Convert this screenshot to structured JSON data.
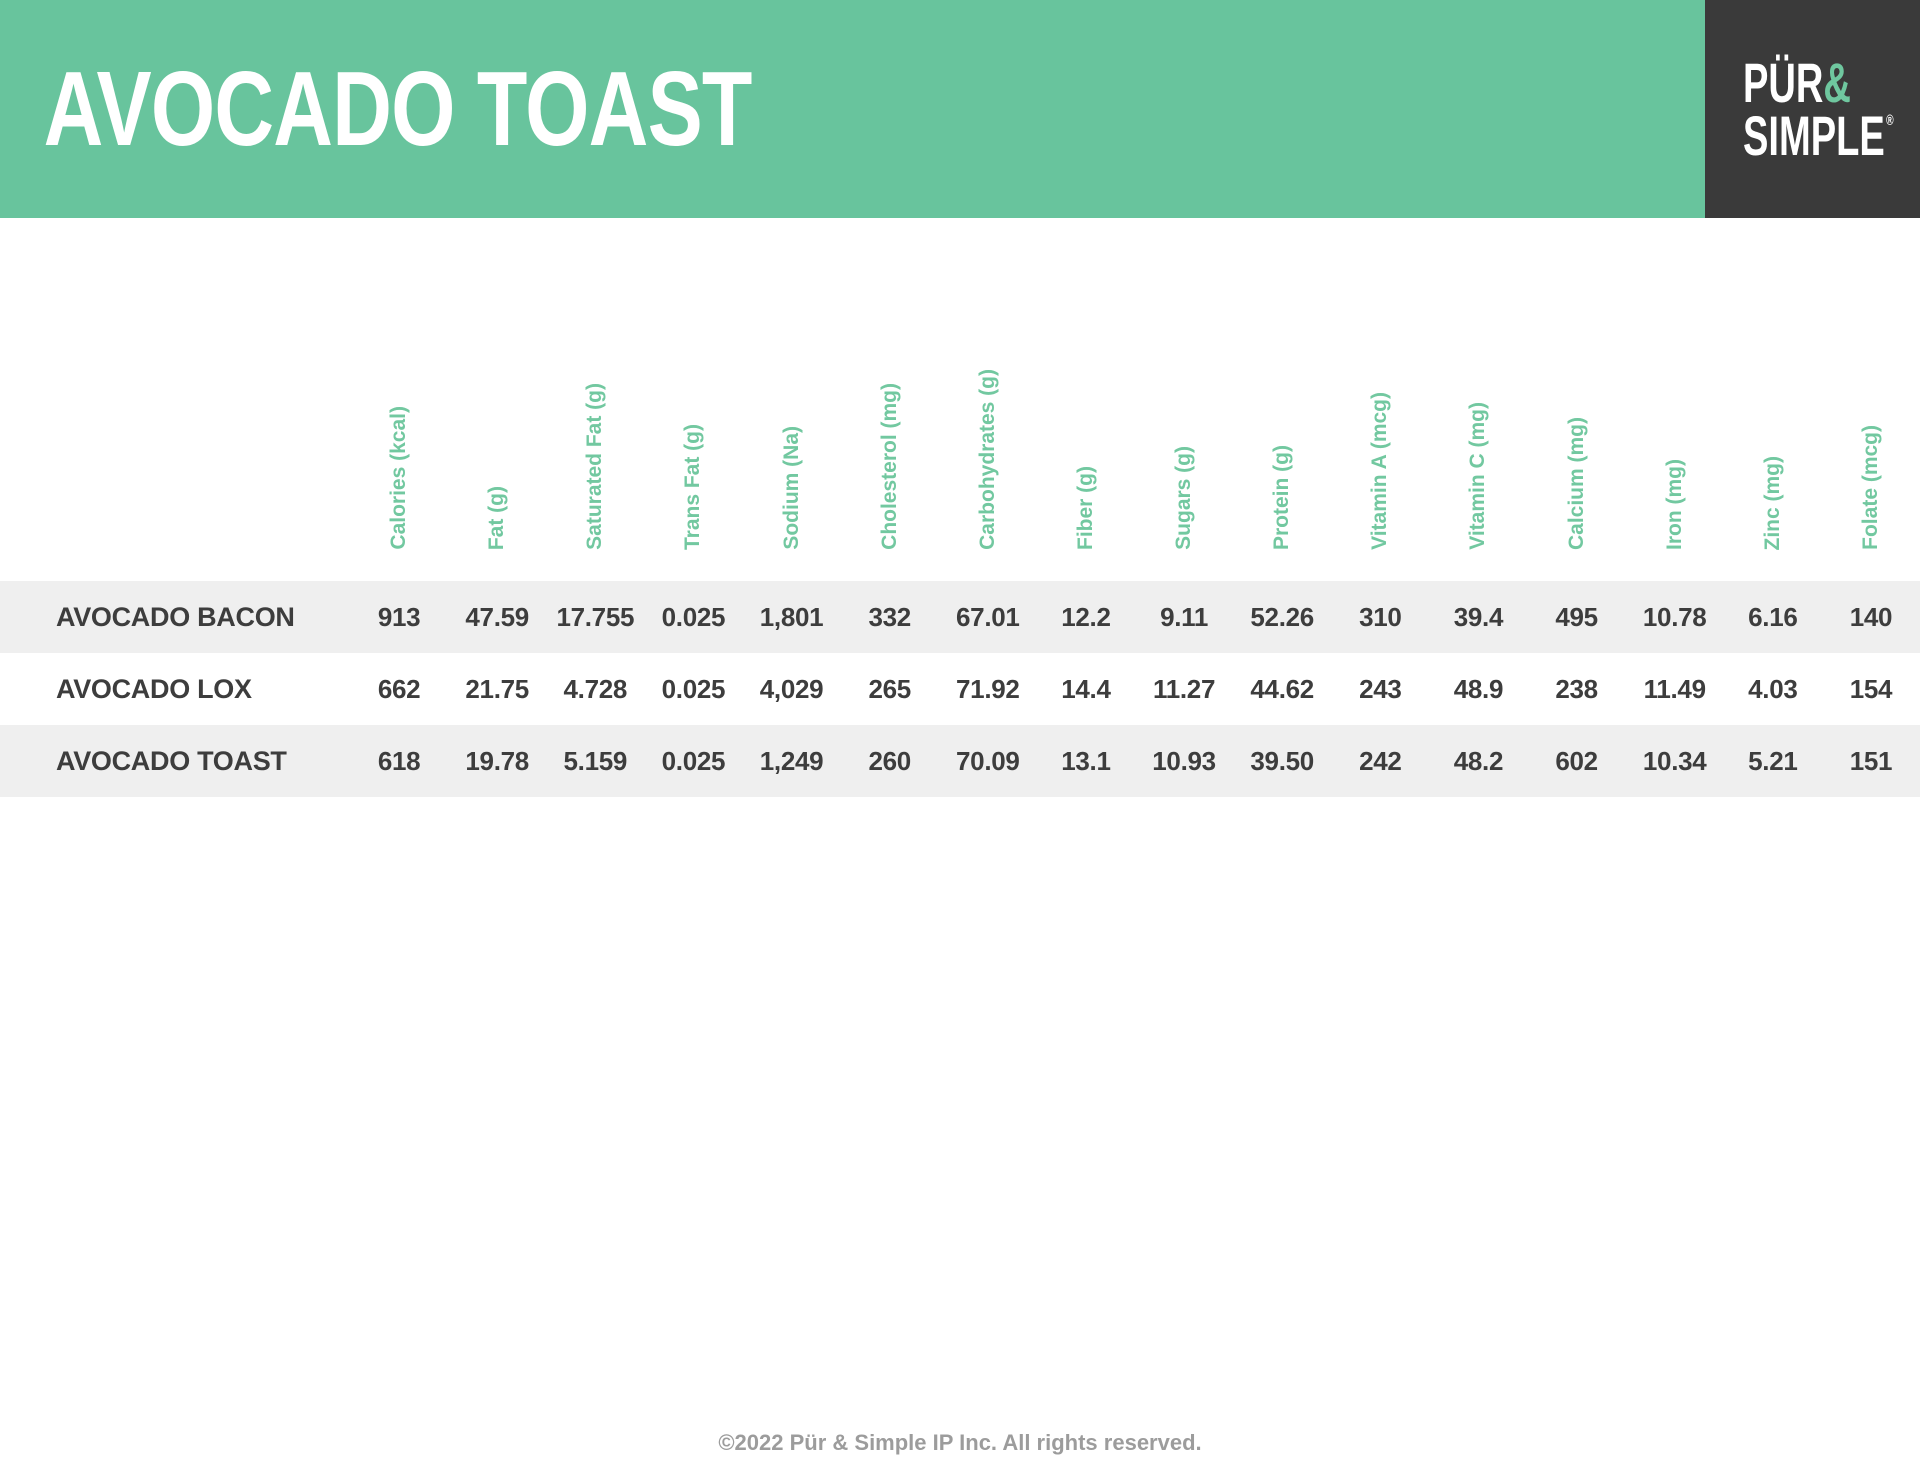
{
  "header": {
    "title": "AVOCADO TOAST"
  },
  "logo": {
    "word1": "PÜR",
    "amp": "&",
    "word2": "SIMPLE",
    "reg": "®"
  },
  "table": {
    "columns": [
      "Calories (kcal)",
      "Fat (g)",
      "Saturated Fat (g)",
      "Trans Fat (g)",
      "Sodium (Na)",
      "Cholesterol (mg)",
      "Carbohydrates (g)",
      "Fiber (g)",
      "Sugars (g)",
      "Protein (g)",
      "Vitamin A (mcg)",
      "Vitamin C (mg)",
      "Calcium (mg)",
      "Iron (mg)",
      "Zinc (mg)",
      "Folate (mcg)"
    ],
    "rows": [
      {
        "name": "AVOCADO BACON",
        "values": [
          "913",
          "47.59",
          "17.755",
          "0.025",
          "1,801",
          "332",
          "67.01",
          "12.2",
          "9.11",
          "52.26",
          "310",
          "39.4",
          "495",
          "10.78",
          "6.16",
          "140"
        ]
      },
      {
        "name": "AVOCADO LOX",
        "values": [
          "662",
          "21.75",
          "4.728",
          "0.025",
          "4,029",
          "265",
          "71.92",
          "14.4",
          "11.27",
          "44.62",
          "243",
          "48.9",
          "238",
          "11.49",
          "4.03",
          "154"
        ]
      },
      {
        "name": "AVOCADO TOAST",
        "values": [
          "618",
          "19.78",
          "5.159",
          "0.025",
          "1,249",
          "260",
          "70.09",
          "13.1",
          "10.93",
          "39.50",
          "242",
          "48.2",
          "602",
          "10.34",
          "5.21",
          "151"
        ]
      }
    ]
  },
  "footer": {
    "copyright": "©2022 Pür & Simple IP Inc. All rights reserved."
  },
  "colors": {
    "header_band_green": "#68c49d",
    "column_label_green": "#72c8a0",
    "logo_box_charcoal": "#3a3a3a",
    "logo_amp_green": "#6fc79f",
    "row_stripe_gray": "#efefef",
    "body_text_dark": "#3d3d3d",
    "footer_text_gray": "#9c9c9c"
  }
}
